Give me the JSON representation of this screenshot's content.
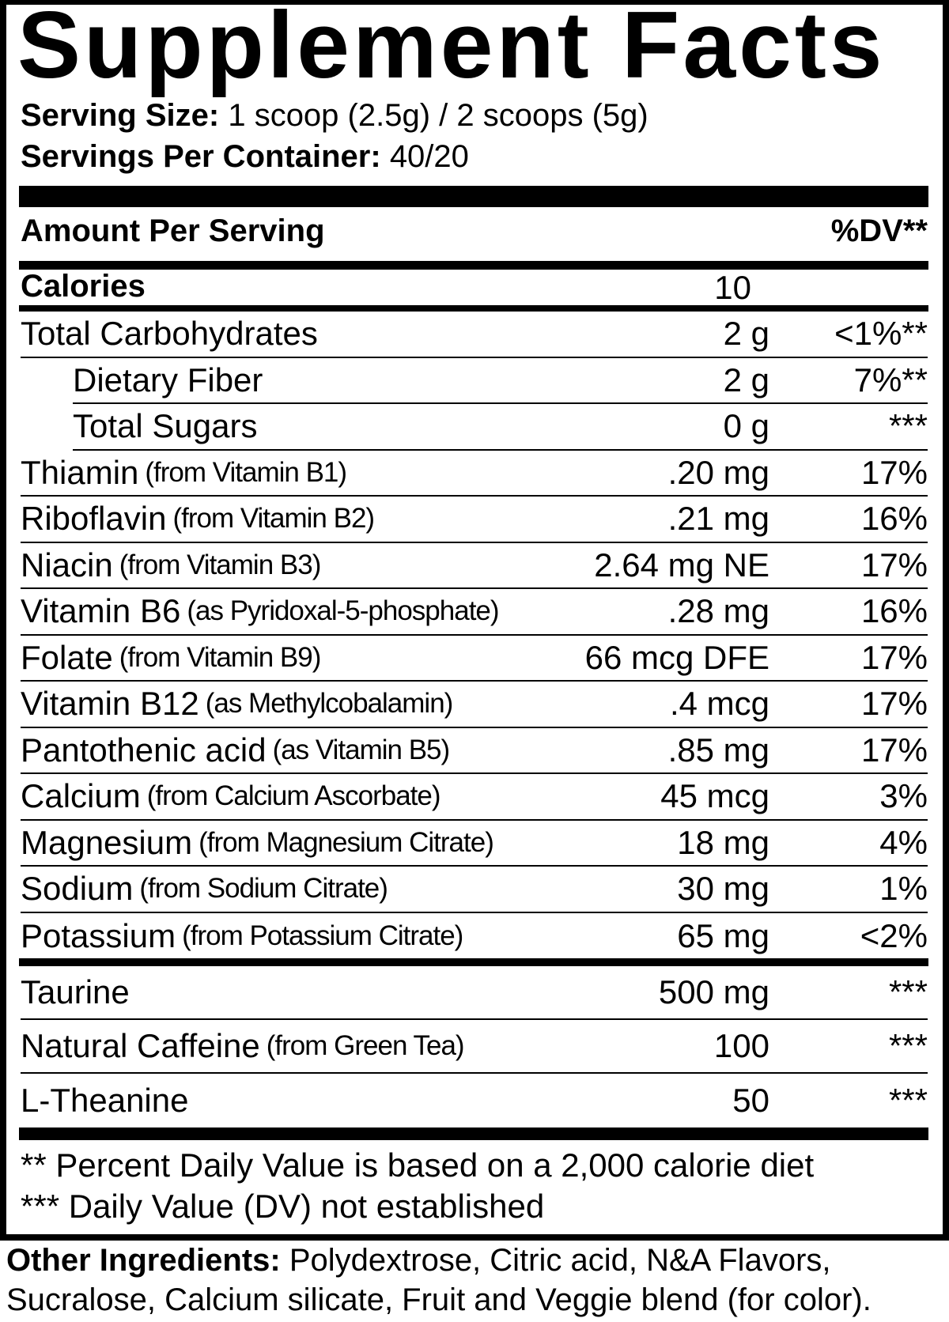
{
  "title": "Supplement Facts",
  "serving_size": {
    "label": "Serving Size:",
    "value": "1 scoop (2.5g) / 2 scoops (5g)"
  },
  "servings_per_container": {
    "label": "Servings Per Container:",
    "value": "40/20"
  },
  "header": {
    "amount": "Amount Per Serving",
    "dv": "%DV**"
  },
  "calories": {
    "label": "Calories",
    "value": "10"
  },
  "rows": [
    {
      "name": "Total Carbohydrates",
      "note": "",
      "amount": "2 g",
      "dv": "<1%**",
      "indent": false
    },
    {
      "name": "Dietary Fiber",
      "note": "",
      "amount": "2 g",
      "dv": "7%**",
      "indent": true
    },
    {
      "name": "Total Sugars",
      "note": "",
      "amount": "0 g",
      "dv": "***",
      "indent": true
    },
    {
      "name": "Thiamin",
      "note": "(from Vitamin B1)",
      "amount": ".20 mg",
      "dv": "17%",
      "indent": false
    },
    {
      "name": "Riboflavin",
      "note": "(from Vitamin B2)",
      "amount": ".21 mg",
      "dv": "16%",
      "indent": false
    },
    {
      "name": "Niacin",
      "note": "(from Vitamin B3)",
      "amount": "2.64 mg NE",
      "dv": "17%",
      "indent": false
    },
    {
      "name": "Vitamin B6",
      "note": "(as Pyridoxal-5-phosphate)",
      "amount": ".28 mg",
      "dv": "16%",
      "indent": false
    },
    {
      "name": "Folate",
      "note": "(from Vitamin B9)",
      "amount": "66 mcg DFE",
      "dv": "17%",
      "indent": false
    },
    {
      "name": "Vitamin B12",
      "note": "(as Methylcobalamin)",
      "amount": ".4 mcg",
      "dv": "17%",
      "indent": false
    },
    {
      "name": "Pantothenic acid",
      "note": "(as Vitamin B5)",
      "amount": ".85 mg",
      "dv": "17%",
      "indent": false
    },
    {
      "name": "Calcium",
      "note": "(from Calcium Ascorbate)",
      "amount": "45 mcg",
      "dv": "3%",
      "indent": false
    },
    {
      "name": "Magnesium",
      "note": "(from Magnesium Citrate)",
      "amount": "18 mg",
      "dv": "4%",
      "indent": false
    },
    {
      "name": "Sodium",
      "note": "(from Sodium Citrate)",
      "amount": "30 mg",
      "dv": "1%",
      "indent": false
    },
    {
      "name": "Potassium",
      "note": "(from Potassium Citrate)",
      "amount": "65 mg",
      "dv": "<2%",
      "indent": false
    }
  ],
  "other_rows": [
    {
      "name": "Taurine",
      "note": "",
      "amount": "500 mg",
      "dv": "***"
    },
    {
      "name": "Natural Caffeine",
      "note": "(from Green Tea)",
      "amount": "100",
      "dv": "***"
    },
    {
      "name": "L-Theanine",
      "note": "",
      "amount": "50",
      "dv": "***"
    }
  ],
  "footnotes": [
    "** Percent Daily Value is based on a 2,000 calorie diet",
    "*** Daily Value (DV) not established"
  ],
  "other_ingredients": {
    "label": "Other Ingredients:",
    "line1": "Polydextrose, Citric acid, N&A Flavors,",
    "line2": "Sucralose, Calcium silicate, Fruit and Veggie blend (for color)."
  }
}
